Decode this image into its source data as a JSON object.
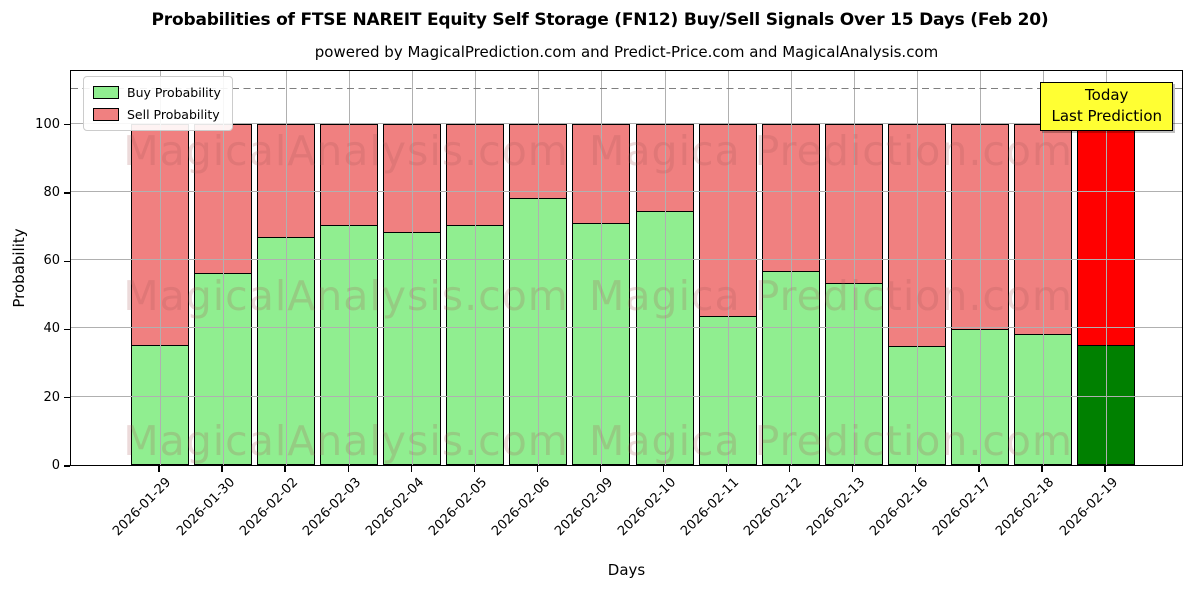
{
  "header": {
    "title": "Probabilities of FTSE NAREIT Equity Self Storage (FN12) Buy/Sell Signals Over 15 Days (Feb 20)",
    "subtitle": "powered by MagicalPrediction.com and Predict-Price.com and MagicalAnalysis.com"
  },
  "legend": {
    "items": [
      {
        "label": "Buy Probability",
        "color": "#90EE90"
      },
      {
        "label": "Sell Probability",
        "color": "#F08080"
      }
    ]
  },
  "annotation": {
    "lines": [
      "Today",
      "Last Prediction"
    ],
    "bg": "#FFFF33"
  },
  "watermarks": [
    "MagicalAnalysis.com",
    "Magica Prediction.com"
  ],
  "chart_data": {
    "type": "bar",
    "stacked": true,
    "title": "Probabilities of FTSE NAREIT Equity Self Storage (FN12) Buy/Sell Signals Over 15 Days (Feb 20)",
    "xlabel": "Days",
    "ylabel": "Probability",
    "categories": [
      "2026-01-29",
      "2026-01-30",
      "2026-02-02",
      "2026-02-03",
      "2026-02-04",
      "2026-02-05",
      "2026-02-06",
      "2026-02-09",
      "2026-02-10",
      "2026-02-11",
      "2026-02-12",
      "2026-02-13",
      "2026-02-16",
      "2026-02-17",
      "2026-02-18",
      "2026-02-19"
    ],
    "series": [
      {
        "name": "Buy Probability",
        "color": "#90EE90",
        "values": [
          35,
          56,
          66.5,
          70,
          68,
          70,
          78,
          70.5,
          74,
          43.5,
          56.5,
          53,
          34.5,
          39.5,
          38,
          35
        ]
      },
      {
        "name": "Sell Probability",
        "color": "#F08080",
        "values": [
          65,
          44,
          33.5,
          30,
          32,
          30,
          22,
          29.5,
          26,
          56.5,
          43.5,
          47,
          65.5,
          60.5,
          62,
          65
        ]
      }
    ],
    "last_bar_colors": {
      "buy": "#008000",
      "sell": "#FF0000"
    },
    "ylim": [
      0,
      116
    ],
    "yticks": [
      0,
      20,
      40,
      60,
      80,
      100
    ],
    "dashed_line_y": 110,
    "grid": true,
    "grid_color": "#b0b0b0",
    "legend_position": "upper left"
  }
}
